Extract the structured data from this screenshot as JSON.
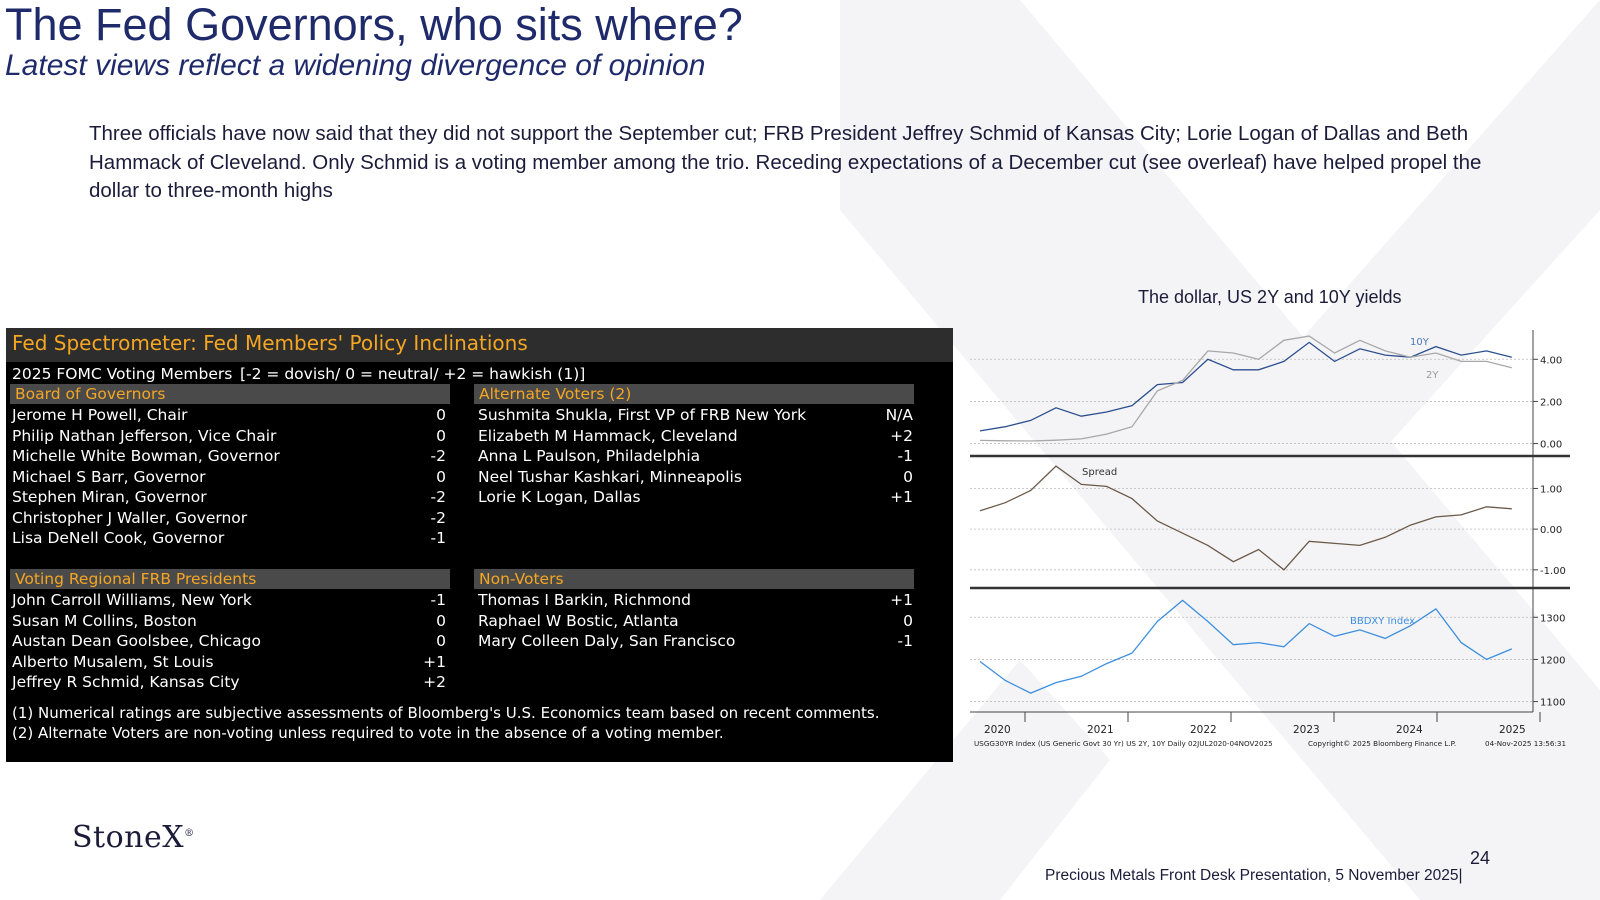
{
  "header": {
    "title": "The Fed Governors, who sits where?",
    "subtitle": "Latest views reflect a widening divergence of opinion"
  },
  "commentary": "Three officials have now said that they did not support the September cut;  FRB President Jeffrey Schmid of Kansas City; Lorie Logan of Dallas and Beth Hammack of Cleveland.  Only Schmid is a voting member among the trio.  Receding expectations of a December cut (see overleaf) have helped propel the dollar to three-month highs",
  "spectrometer": {
    "title": "Fed Spectrometer: Fed Members' Policy Inclinations",
    "subheader_left": "2025 FOMC Voting Members",
    "subheader_right": "[-2 = dovish/ 0 = neutral/ +2 = hawkish (1)]",
    "board": {
      "heading": "Board of Governors",
      "members": [
        {
          "name": "Jerome H Powell, Chair",
          "score": "0"
        },
        {
          "name": "Philip Nathan Jefferson, Vice Chair",
          "score": "0"
        },
        {
          "name": "Michelle White Bowman, Governor",
          "score": "-2"
        },
        {
          "name": "Michael S Barr, Governor",
          "score": "0"
        },
        {
          "name": "Stephen Miran, Governor",
          "score": "-2"
        },
        {
          "name": "Christopher J Waller, Governor",
          "score": "-2"
        },
        {
          "name": "Lisa DeNell Cook, Governor",
          "score": "-1"
        }
      ]
    },
    "alternates": {
      "heading": "Alternate Voters (2)",
      "members": [
        {
          "name": "Sushmita Shukla, First VP of FRB New York",
          "score": "N/A"
        },
        {
          "name": "Elizabeth M Hammack, Cleveland",
          "score": "+2"
        },
        {
          "name": "Anna L Paulson, Philadelphia",
          "score": "-1"
        },
        {
          "name": "Neel Tushar Kashkari, Minneapolis",
          "score": "0"
        },
        {
          "name": "Lorie K Logan, Dallas",
          "score": "+1"
        }
      ]
    },
    "regional": {
      "heading": "Voting Regional FRB Presidents",
      "members": [
        {
          "name": "John Carroll Williams, New York",
          "score": "-1"
        },
        {
          "name": "Susan M Collins, Boston",
          "score": "0"
        },
        {
          "name": "Austan Dean Goolsbee, Chicago",
          "score": "0"
        },
        {
          "name": "Alberto Musalem, St Louis",
          "score": "+1"
        },
        {
          "name": "Jeffrey R Schmid, Kansas City",
          "score": "+2"
        }
      ]
    },
    "nonvoters": {
      "heading": "Non-Voters",
      "members": [
        {
          "name": "Thomas I Barkin, Richmond",
          "score": "+1"
        },
        {
          "name": "Raphael W Bostic, Atlanta",
          "score": "0"
        },
        {
          "name": "Mary Colleen Daly, San Francisco",
          "score": "-1"
        }
      ]
    },
    "footnote1": "(1) Numerical ratings are subjective assessments of Bloomberg's U.S. Economics team based on recent comments.",
    "footnote2": "(2) Alternate Voters are non-voting unless required to vote in the absence of a voting member."
  },
  "chart_title": "The dollar, US 2Y and 10Y yields",
  "chart_data": {
    "type": "line",
    "x_years": [
      "2020",
      "2021",
      "2022",
      "2023",
      "2024",
      "2025"
    ],
    "x": [
      "2020-07",
      "2020-10",
      "2021-01",
      "2021-04",
      "2021-07",
      "2021-10",
      "2022-01",
      "2022-04",
      "2022-07",
      "2022-10",
      "2023-01",
      "2023-04",
      "2023-07",
      "2023-10",
      "2024-01",
      "2024-04",
      "2024-07",
      "2024-10",
      "2025-01",
      "2025-04",
      "2025-07",
      "2025-10"
    ],
    "panels": [
      {
        "name": "yields",
        "ylim": [
          -0.4,
          5.2
        ],
        "yticks": [
          "4.00",
          "2.00",
          "0.00"
        ],
        "ytick_values": [
          4,
          2,
          0
        ],
        "series": [
          {
            "name": "10Y",
            "color": "#2c4f8f",
            "values": [
              0.6,
              0.8,
              1.1,
              1.7,
              1.3,
              1.5,
              1.8,
              2.8,
              2.9,
              4.0,
              3.5,
              3.5,
              3.9,
              4.8,
              3.9,
              4.5,
              4.2,
              4.1,
              4.6,
              4.2,
              4.4,
              4.1
            ]
          },
          {
            "name": "2Y",
            "color": "#a8a8a8",
            "values": [
              0.15,
              0.13,
              0.12,
              0.16,
              0.22,
              0.45,
              0.8,
              2.5,
              3.0,
              4.4,
              4.3,
              4.0,
              4.9,
              5.1,
              4.3,
              4.9,
              4.4,
              4.1,
              4.3,
              3.9,
              3.9,
              3.6
            ]
          }
        ]
      },
      {
        "name": "Spread",
        "ylim": [
          -1.3,
          1.7
        ],
        "yticks": [
          "1.00",
          "0.00",
          "-1.00"
        ],
        "ytick_values": [
          1,
          0,
          -1
        ],
        "series": [
          {
            "name": "Spread",
            "color": "#6b5a4a",
            "values": [
              0.45,
              0.65,
              0.95,
              1.55,
              1.1,
              1.05,
              0.75,
              0.2,
              -0.1,
              -0.4,
              -0.8,
              -0.5,
              -1.0,
              -0.3,
              -0.35,
              -0.4,
              -0.2,
              0.1,
              0.3,
              0.35,
              0.55,
              0.5
            ]
          }
        ]
      },
      {
        "name": "BBDXY Index",
        "ylim": [
          1080,
          1360
        ],
        "yticks": [
          "1300",
          "1200",
          "1100"
        ],
        "ytick_values": [
          1300,
          1200,
          1100
        ],
        "series": [
          {
            "name": "BBDXY Index",
            "color": "#3d8fe0",
            "values": [
              1195,
              1150,
              1120,
              1145,
              1160,
              1190,
              1215,
              1290,
              1340,
              1290,
              1235,
              1240,
              1230,
              1285,
              1255,
              1270,
              1250,
              1280,
              1320,
              1240,
              1200,
              1225
            ]
          }
        ]
      }
    ],
    "footer_left": "USGG30YR Index (US Generic Govt 30 Yr) US 2Y, 10Y Daily 02JUL2020-04NOV2025",
    "footer_mid": "Copyright© 2025 Bloomberg Finance L.P.",
    "footer_right": "04-Nov-2025 13:56:31"
  },
  "footer": {
    "logo": "StoneX",
    "page_number": "24",
    "presentation": "Precious Metals Front Desk Presentation, 5 November 2025|"
  }
}
